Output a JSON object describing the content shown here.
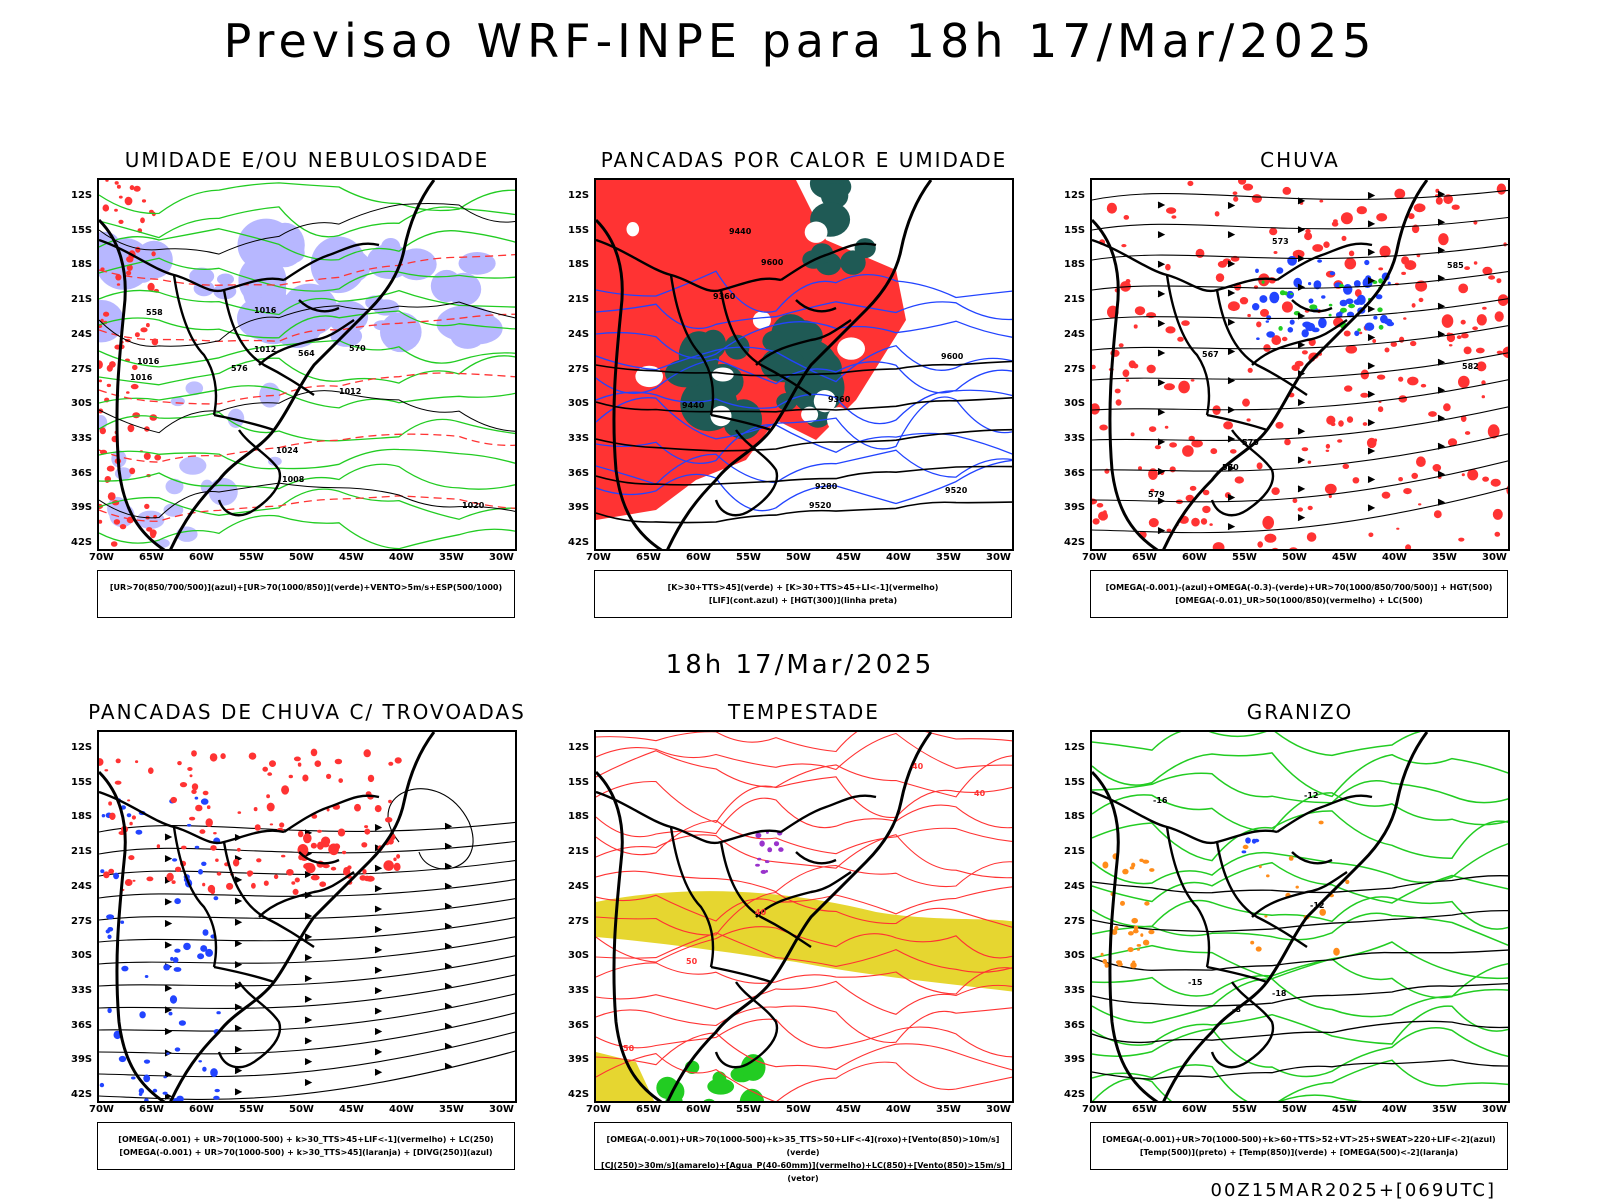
{
  "header": {
    "title": "Previsao WRF-INPE  para 18h 17/Mar/2025"
  },
  "mid_label": "18h 17/Mar/2025",
  "footer": "00Z15MAR2025+[069UTC]",
  "axes": {
    "lat_labels": [
      "12S",
      "15S",
      "18S",
      "21S",
      "24S",
      "27S",
      "30S",
      "33S",
      "36S",
      "39S",
      "42S"
    ],
    "lon_labels": [
      "70W",
      "65W",
      "60W",
      "55W",
      "50W",
      "45W",
      "40W",
      "35W",
      "30W"
    ]
  },
  "colors": {
    "red": "#ff3333",
    "green": "#22cc22",
    "blue": "#2244ff",
    "lavender": "#b0b0ff",
    "darkgreen": "#1f5a55",
    "yellow": "#e6d630",
    "orange": "#ff8c1a",
    "purple": "#9933cc"
  },
  "panels": [
    {
      "title": "UMIDADE E/OU NEBULOSIDADE",
      "legend": [
        "[UR>70(850/700/500)](azul)+[UR>70(1000/850)](verde)+VENTO>5m/s+ESP(500/1000)"
      ],
      "contour_labels": [
        "1008",
        "1012",
        "1016",
        "1016",
        "1020",
        "1012",
        "1016",
        "1024",
        "576",
        "570",
        "564",
        "558"
      ]
    },
    {
      "title": "PANCADAS POR CALOR E UMIDADE",
      "legend": [
        "[K>30+TTS>45](verde) + [K>30+TTS>45+LI<-1](vermelho)",
        "[LIF](cont.azul) + [HGT(300)](linha preta)"
      ],
      "contour_labels": [
        "9600",
        "9520",
        "9440",
        "9360",
        "9280",
        "9600",
        "9520",
        "9440",
        "9360"
      ]
    },
    {
      "title": "CHUVA",
      "legend": [
        "[OMEGA(-0.001)-(azul)+OMEGA(-0.3)-(verde)+UR>70(1000/850/700/500)] + HGT(500)",
        "[OMEGA(-0.01)_UR>50(1000/850)(vermelho) + LC(500)"
      ],
      "contour_labels": [
        "585",
        "582",
        "579",
        "576",
        "573",
        "570",
        "567"
      ]
    },
    {
      "title": "PANCADAS DE CHUVA C/ TROVOADAS",
      "legend": [
        "[OMEGA(-0.001) + UR>70(1000-500) + k>30_TTS>45+LIF<-1](vermelho) + LC(250)",
        "[OMEGA(-0.001) + UR>70(1000-500) + k>30_TTS>45](laranja) + [DIVG(250)](azul)"
      ],
      "contour_labels": []
    },
    {
      "title": "TEMPESTADE",
      "legend": [
        "[OMEGA(-0.001)+UR>70(1000-500)+k>35_TTS>50+LIF<-4](roxo)+[Vento(850)>10m/s](verde)",
        "[CJ(250)>30m/s](amarelo)+[Agua_P(40-60mm)](vermelho)+LC(850)+[Vento(850)>15m/s](vetor)"
      ],
      "contour_labels": [
        "50",
        "40",
        "40",
        "50",
        "40"
      ]
    },
    {
      "title": "GRANIZO",
      "legend": [
        "[OMEGA(-0.001)+UR>70(1000-500)+k>60+TTS>52+VT>25+SWEAT>220+LIF<-2](azul)",
        "[Temp(500)](preto) + [Temp(850)](verde) + [OMEGA(500)<-2](laranja)"
      ],
      "contour_labels": [
        "-8",
        "-12",
        "-12",
        "-15",
        "-16",
        "-18"
      ]
    }
  ]
}
